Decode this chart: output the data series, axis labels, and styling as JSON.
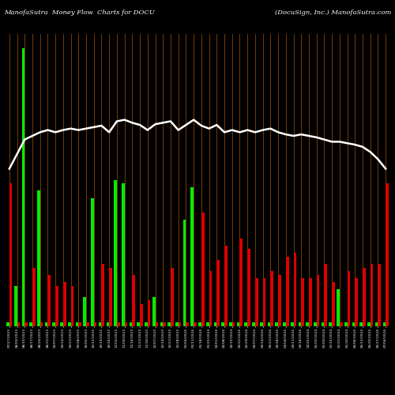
{
  "title_left": "ManofaSutra  Money Flow  Charts for DOCU",
  "title_right": "(DocuSign, Inc.) ManofaSutra.com",
  "background_color": "#000000",
  "divider_color": "#8B4500",
  "line_color": "#ffffff",
  "green_color": "#00ee00",
  "red_color": "#dd0000",
  "x_labels": [
    "07/27/2023",
    "08/03/2023",
    "08/10/2023",
    "08/17/2023",
    "08/24/2023",
    "08/31/2023",
    "09/07/2023",
    "09/14/2023",
    "09/21/2023",
    "09/28/2023",
    "10/05/2023",
    "10/12/2023",
    "10/19/2023",
    "10/26/2023",
    "11/02/2023",
    "11/09/2023",
    "11/16/2023",
    "11/23/2023",
    "11/30/2023",
    "12/07/2023",
    "12/14/2023",
    "12/21/2023",
    "12/28/2023",
    "01/04/2024",
    "01/11/2024",
    "01/18/2024",
    "01/25/2024",
    "02/01/2024",
    "02/08/2024",
    "02/15/2024",
    "02/22/2024",
    "02/29/2024",
    "03/07/2024",
    "03/14/2024",
    "03/21/2024",
    "03/28/2024",
    "04/04/2024",
    "04/11/2024",
    "04/18/2024",
    "04/25/2024",
    "05/02/2024",
    "05/09/2024",
    "05/16/2024",
    "05/23/2024",
    "05/30/2024",
    "06/06/2024",
    "06/13/2024",
    "06/20/2024",
    "06/27/2024",
    "07/04/2024"
  ],
  "green_bars": [
    5,
    55,
    380,
    5,
    185,
    5,
    5,
    5,
    5,
    5,
    40,
    175,
    5,
    5,
    200,
    195,
    5,
    5,
    5,
    40,
    5,
    5,
    5,
    145,
    190,
    5,
    5,
    5,
    5,
    5,
    5,
    5,
    5,
    5,
    5,
    5,
    5,
    5,
    5,
    5,
    5,
    5,
    5,
    50,
    5,
    5,
    5,
    5,
    5,
    5
  ],
  "red_bars": [
    195,
    5,
    5,
    80,
    5,
    70,
    55,
    60,
    55,
    5,
    5,
    5,
    85,
    80,
    5,
    5,
    70,
    30,
    35,
    5,
    5,
    80,
    5,
    5,
    5,
    155,
    75,
    90,
    110,
    5,
    120,
    105,
    65,
    65,
    75,
    70,
    95,
    100,
    65,
    65,
    70,
    85,
    60,
    5,
    75,
    65,
    80,
    85,
    85,
    195
  ],
  "line_values": [
    215,
    235,
    255,
    260,
    265,
    268,
    265,
    268,
    270,
    268,
    270,
    272,
    274,
    265,
    280,
    282,
    278,
    275,
    268,
    276,
    278,
    280,
    268,
    275,
    282,
    274,
    270,
    275,
    265,
    268,
    265,
    268,
    265,
    268,
    270,
    265,
    262,
    260,
    262,
    260,
    258,
    255,
    252,
    252,
    250,
    248,
    245,
    238,
    228,
    215
  ]
}
